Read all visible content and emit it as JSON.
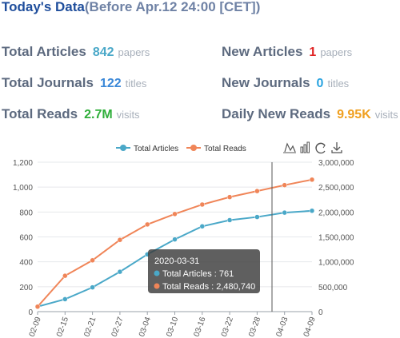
{
  "header": {
    "title": "Today's Data",
    "subtitle": "(Before Apr.12 24:00 [CET])"
  },
  "colors": {
    "title": "#1f4e9c",
    "subtitle": "#6f82a5",
    "label": "#5d6a7f",
    "unit": "#a7afba",
    "articles": "#4aa8c8",
    "reads": "#f08558",
    "new_articles": "#e02424",
    "journals": "#3b88d8",
    "new_journals": "#29a3e0",
    "total_reads": "#2fae3a",
    "daily_reads": "#f0a020"
  },
  "stats": {
    "total_articles": {
      "label": "Total Articles",
      "value": "842",
      "unit": "papers"
    },
    "new_articles": {
      "label": "New Articles",
      "value": "1",
      "unit": "papers"
    },
    "total_journals": {
      "label": "Total Journals",
      "value": "122",
      "unit": "titles"
    },
    "new_journals": {
      "label": "New Journals",
      "value": "0",
      "unit": "titles"
    },
    "total_reads": {
      "label": "Total Reads",
      "value": "2.7M",
      "unit": "visits"
    },
    "daily_new_reads": {
      "label": "Daily New Reads",
      "value": "9.95K",
      "unit": "visits"
    }
  },
  "toolbar": [
    "line-chart-icon",
    "bar-chart-icon",
    "restore-icon",
    "download-icon"
  ],
  "tooltip": {
    "date": "2020-03-31",
    "articles": "Total Articles : 761",
    "reads": "Total Reads : 2,480,740"
  },
  "chart_data": {
    "type": "line",
    "legend_position": "top-center",
    "x_ticks": [
      "02-09",
      "02-15",
      "02-21",
      "02-27",
      "03-04",
      "03-10",
      "03-16",
      "03-22",
      "03-28",
      "04-03",
      "04-09"
    ],
    "y_left": {
      "ticks": [
        "0",
        "200",
        "400",
        "600",
        "800",
        "1,000",
        "1,200"
      ],
      "range": [
        0,
        1200
      ]
    },
    "y_right": {
      "ticks": [
        "0",
        "500,000",
        "1,000,000",
        "1,500,000",
        "2,000,000",
        "2,500,000",
        "3,000,000"
      ],
      "range": [
        0,
        3000000
      ]
    },
    "grid": true,
    "series": [
      {
        "name": "Total Articles",
        "axis": "left",
        "x": [
          "02-09",
          "02-15",
          "02-21",
          "02-27",
          "03-04",
          "03-10",
          "03-16",
          "03-22",
          "03-28",
          "04-03",
          "04-09"
        ],
        "values": [
          40,
          100,
          195,
          320,
          460,
          580,
          685,
          735,
          760,
          795,
          810
        ]
      },
      {
        "name": "Total Reads",
        "axis": "right",
        "x": [
          "02-09",
          "02-15",
          "02-21",
          "02-27",
          "03-04",
          "03-10",
          "03-16",
          "03-22",
          "03-28",
          "04-03",
          "04-09"
        ],
        "values": [
          100000,
          720000,
          1030000,
          1440000,
          1750000,
          1960000,
          2150000,
          2300000,
          2420000,
          2540000,
          2650000
        ]
      }
    ]
  }
}
